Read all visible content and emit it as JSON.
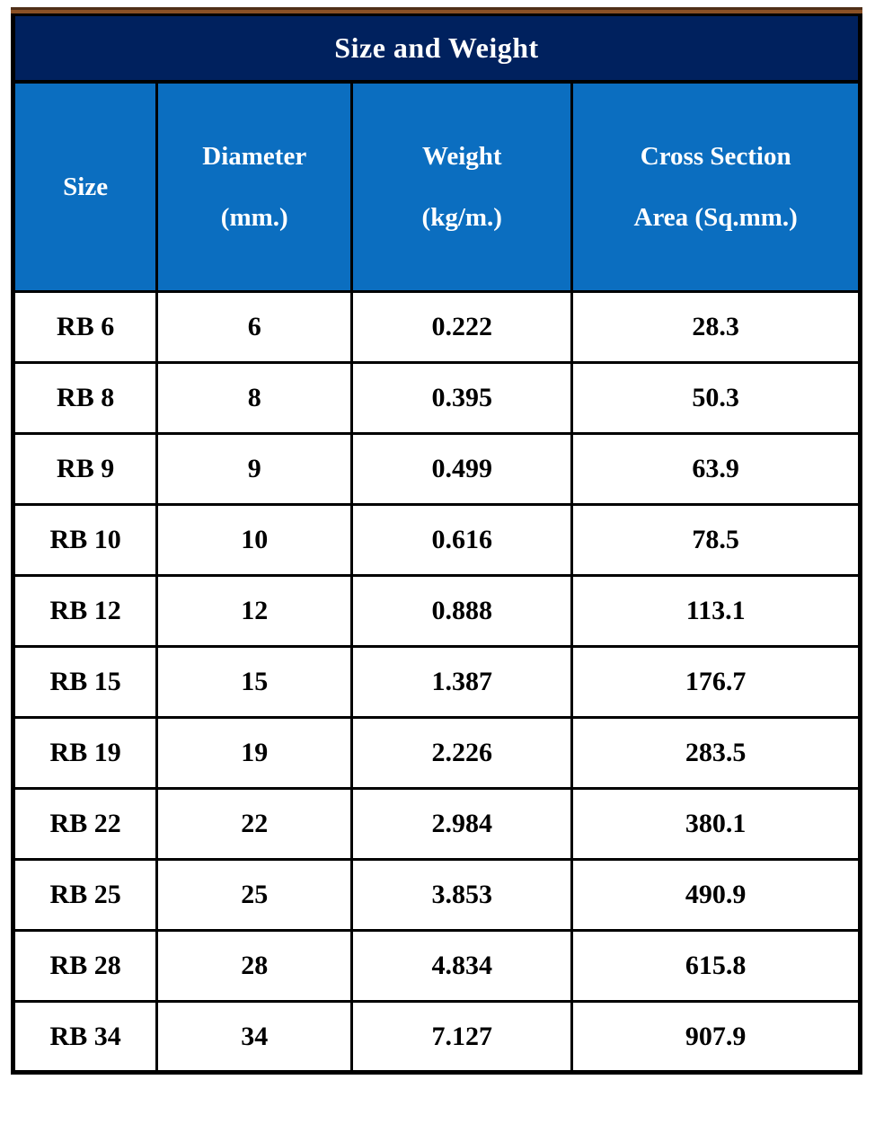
{
  "table": {
    "title": "Size and Weight",
    "columns": [
      "Size",
      "Diameter\n(mm.)",
      "Weight\n(kg/m.)",
      "Cross Section\nArea (Sq.mm.)"
    ],
    "rows": [
      [
        "RB 6",
        "6",
        "0.222",
        "28.3"
      ],
      [
        "RB 8",
        "8",
        "0.395",
        "50.3"
      ],
      [
        "RB 9",
        "9",
        "0.499",
        "63.9"
      ],
      [
        "RB 10",
        "10",
        "0.616",
        "78.5"
      ],
      [
        "RB 12",
        "12",
        "0.888",
        "113.1"
      ],
      [
        "RB 15",
        "15",
        "1.387",
        "176.7"
      ],
      [
        "RB 19",
        "19",
        "2.226",
        "283.5"
      ],
      [
        "RB 22",
        "22",
        "2.984",
        "380.1"
      ],
      [
        "RB 25",
        "25",
        "3.853",
        "490.9"
      ],
      [
        "RB 28",
        "28",
        "4.834",
        "615.8"
      ],
      [
        "RB 34",
        "34",
        "7.127",
        "907.9"
      ]
    ]
  },
  "colors": {
    "title_bar_background": "#00215E",
    "header_row_background": "#0B6EC0",
    "top_accent_line": "#8A5126",
    "border": "#000000",
    "header_text": "#FFFFFF",
    "body_text": "#000000"
  }
}
